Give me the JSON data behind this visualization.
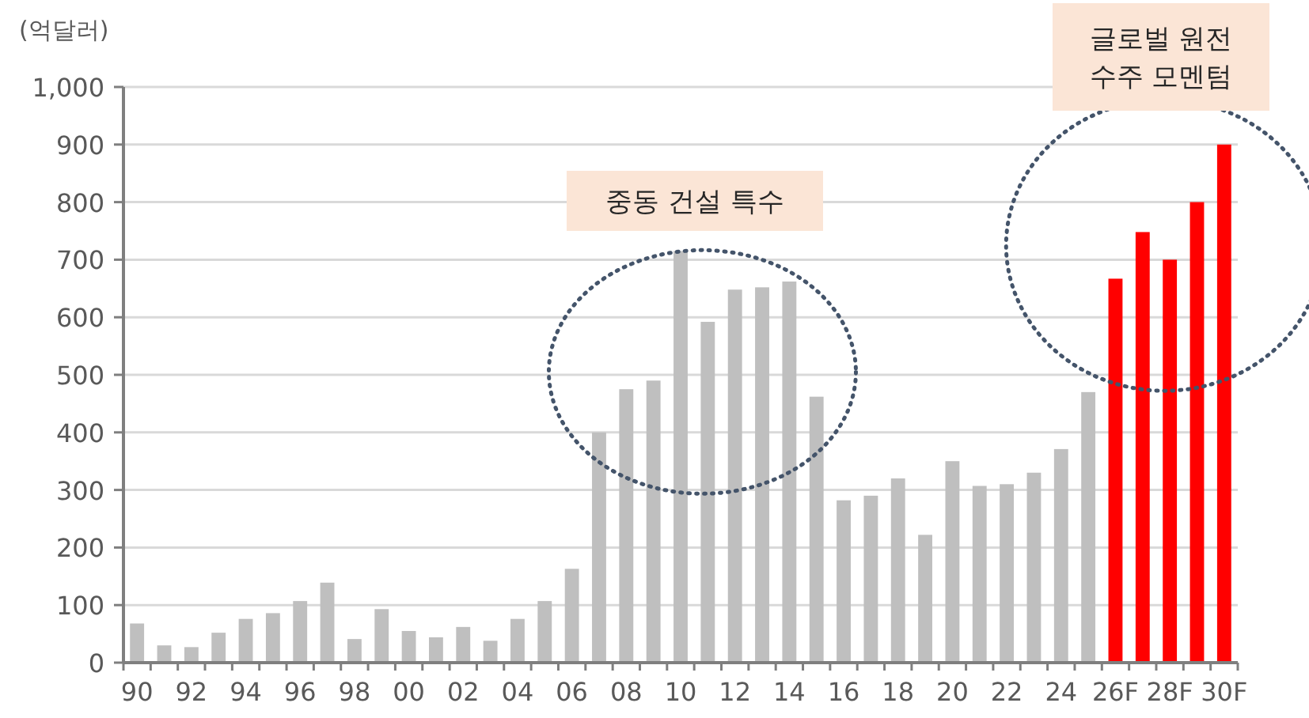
{
  "chart_data": {
    "type": "bar",
    "ylabel": "(억달러)",
    "categories": [
      "90",
      null,
      "92",
      null,
      "94",
      null,
      "96",
      null,
      "98",
      null,
      "00",
      null,
      "02",
      null,
      "04",
      null,
      "06",
      null,
      "08",
      null,
      "10",
      null,
      "12",
      null,
      "14",
      null,
      "16",
      null,
      "18",
      null,
      "20",
      null,
      "22",
      null,
      "24",
      null,
      "26F",
      null,
      "28F",
      null,
      "30F"
    ],
    "values": [
      68,
      30,
      27,
      52,
      76,
      86,
      107,
      139,
      41,
      93,
      55,
      44,
      62,
      38,
      76,
      107,
      163,
      400,
      475,
      490,
      715,
      592,
      648,
      652,
      662,
      462,
      282,
      290,
      320,
      222,
      350,
      307,
      310,
      330,
      371,
      470,
      667,
      748,
      700,
      800,
      900
    ],
    "colors": [
      "#bfbfbf",
      "#bfbfbf",
      "#bfbfbf",
      "#bfbfbf",
      "#bfbfbf",
      "#bfbfbf",
      "#bfbfbf",
      "#bfbfbf",
      "#bfbfbf",
      "#bfbfbf",
      "#bfbfbf",
      "#bfbfbf",
      "#bfbfbf",
      "#bfbfbf",
      "#bfbfbf",
      "#bfbfbf",
      "#bfbfbf",
      "#bfbfbf",
      "#bfbfbf",
      "#bfbfbf",
      "#bfbfbf",
      "#bfbfbf",
      "#bfbfbf",
      "#bfbfbf",
      "#bfbfbf",
      "#bfbfbf",
      "#bfbfbf",
      "#bfbfbf",
      "#bfbfbf",
      "#bfbfbf",
      "#bfbfbf",
      "#bfbfbf",
      "#bfbfbf",
      "#bfbfbf",
      "#bfbfbf",
      "#bfbfbf",
      "#ff0000",
      "#ff0000",
      "#ff0000",
      "#ff0000",
      "#ff0000"
    ],
    "ylim": [
      0,
      1000
    ],
    "yticks": [
      0,
      100,
      200,
      300,
      400,
      500,
      600,
      700,
      800,
      900,
      {
        "value": 1000,
        "label": "1,000"
      }
    ],
    "grid": "y",
    "annotations": [
      "중동 건설 특수",
      "글로벌 원전\n수주 모멘텀"
    ]
  }
}
